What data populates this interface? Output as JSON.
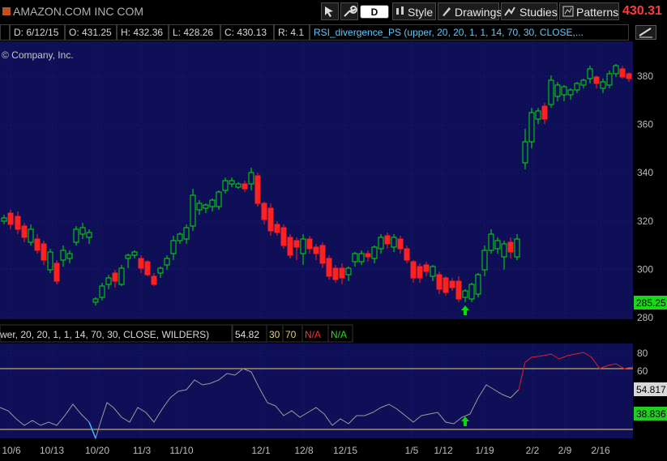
{
  "toolbar": {
    "symbol_name": "AMAZON.COM INC COM",
    "aggregation_label": "D",
    "style_label": "Style",
    "drawings_label": "Drawings",
    "studies_label": "Studies",
    "patterns_label": "Patterns",
    "last_price": "430.31",
    "icons": [
      "gear-icon",
      "wrench-icon",
      "style-icon",
      "drawings-icon",
      "studies-icon",
      "patterns-icon",
      "cursor-icon"
    ]
  },
  "infobar": {
    "date": "D: 6/12/15",
    "open": "O: 431.25",
    "high": "H: 432.36",
    "low": "L: 428.26",
    "close": "C: 430.13",
    "range": "R: 4.1",
    "study": "RSI_divergence_PS (upper, 20, 20, 1, 1, 14, 70, 30, CLOSE,..."
  },
  "price_panel": {
    "company_label": "© Company, Inc.",
    "y_ticks": [
      "380",
      "360",
      "340",
      "320",
      "300",
      "280"
    ],
    "last_badge": "285.25"
  },
  "lower_panel": {
    "study_label": "wer, 20, 20, 1, 1, 14, 70, 30, CLOSE, WILDERS)",
    "value": "54.82",
    "oversold": "30",
    "overbought": "70",
    "na1": "N/A",
    "na2": "N/A",
    "y_ticks": [
      "80",
      "60"
    ],
    "badge_upper": "54.817",
    "badge_lower": "38.836"
  },
  "x_axis": {
    "labels": [
      "10/6",
      "10/13",
      "10/20",
      "11/3",
      "11/10",
      "12/1",
      "12/8",
      "12/15",
      "1/5",
      "1/12",
      "1/19",
      "2/2",
      "2/9",
      "2/16"
    ]
  },
  "colors": {
    "up": "#00e000",
    "down": "#ff2020",
    "panel_bg": "#0f0f57",
    "band": "#e8d060",
    "rsi": "#9a9a9a"
  }
}
